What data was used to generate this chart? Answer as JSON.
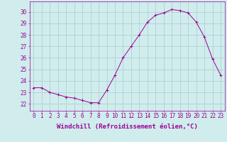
{
  "hours": [
    0,
    1,
    2,
    3,
    4,
    5,
    6,
    7,
    8,
    9,
    10,
    11,
    12,
    13,
    14,
    15,
    16,
    17,
    18,
    19,
    20,
    21,
    22,
    23
  ],
  "values": [
    23.4,
    23.4,
    23.0,
    22.8,
    22.6,
    22.5,
    22.3,
    22.1,
    22.1,
    23.2,
    24.5,
    26.0,
    27.0,
    28.0,
    29.1,
    29.7,
    29.9,
    30.2,
    30.1,
    29.9,
    29.1,
    27.8,
    25.9,
    24.5
  ],
  "line_color": "#990099",
  "marker": "+",
  "bg_color": "#d0ecec",
  "grid_color": "#aacccc",
  "ylabel_ticks": [
    22,
    23,
    24,
    25,
    26,
    27,
    28,
    29,
    30
  ],
  "ylim": [
    21.4,
    30.9
  ],
  "xlim": [
    -0.5,
    23.5
  ],
  "tick_color": "#990099",
  "axis_color": "#990099",
  "font_size": 5.5,
  "xlabel": "Windchill (Refroidissement éolien,°C)",
  "xlabel_fontsize": 6.5
}
